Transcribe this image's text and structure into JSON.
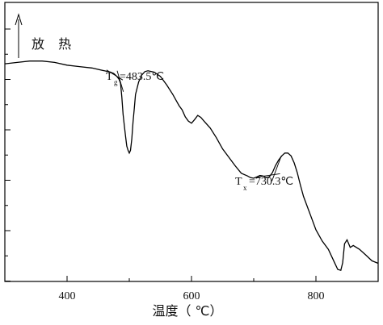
{
  "chart_data": {
    "type": "line",
    "title": "",
    "xlabel": "温度（ ℃）",
    "ylabel": "",
    "xlim": [
      300,
      900
    ],
    "ylim": [
      0,
      100
    ],
    "xticks": [
      400,
      600,
      800
    ],
    "y_tick_count": 6,
    "grid": false,
    "legend": "none",
    "arrow_label": "放 热",
    "series": [
      {
        "x": [
          300,
          320,
          340,
          360,
          380,
          400,
          420,
          440,
          460,
          470,
          475,
          480,
          483.5,
          486,
          488,
          490,
          492,
          494,
          496,
          498,
          500,
          502,
          504,
          506,
          508,
          510,
          515,
          520,
          525,
          530,
          540,
          550,
          560,
          570,
          580,
          585,
          590,
          595,
          600,
          605,
          610,
          615,
          620,
          630,
          640,
          650,
          660,
          670,
          680,
          690,
          695,
          700,
          705,
          710,
          715,
          720,
          725,
          730,
          735,
          740,
          745,
          750,
          755,
          760,
          765,
          770,
          775,
          780,
          790,
          800,
          810,
          820,
          830,
          835,
          840,
          843,
          846,
          850,
          855,
          860,
          870,
          880,
          890,
          900
        ],
        "y": [
          78,
          78.5,
          79,
          79,
          78.5,
          77.5,
          77,
          76.5,
          75.5,
          75,
          74.5,
          73.5,
          72.5,
          71,
          66,
          60,
          56,
          52,
          48.5,
          47,
          46,
          47,
          51,
          57,
          62,
          67,
          71.5,
          74,
          75.2,
          75.5,
          75,
          73.5,
          70.5,
          67,
          63,
          61.5,
          59,
          57.5,
          56.7,
          58,
          59.5,
          58.8,
          57.5,
          55,
          51.5,
          47.5,
          44.5,
          41.5,
          38.8,
          37.8,
          37.2,
          37,
          37.5,
          38,
          37.8,
          37.2,
          37.5,
          39,
          41.5,
          43.5,
          45,
          46,
          46,
          45,
          42.5,
          39,
          34.5,
          30.5,
          24.5,
          18.5,
          14.5,
          11.5,
          6.7,
          4.3,
          4,
          6.7,
          13.5,
          14.9,
          12.2,
          12.9,
          11.5,
          9.5,
          7.4,
          6.5
        ]
      }
    ],
    "annotations": [
      {
        "main": "T",
        "sub": "g",
        "value": "=483.5℃",
        "x": 483.5
      },
      {
        "main": "T",
        "sub": "x",
        "value": "=730.3℃",
        "x": 730.3
      }
    ]
  }
}
